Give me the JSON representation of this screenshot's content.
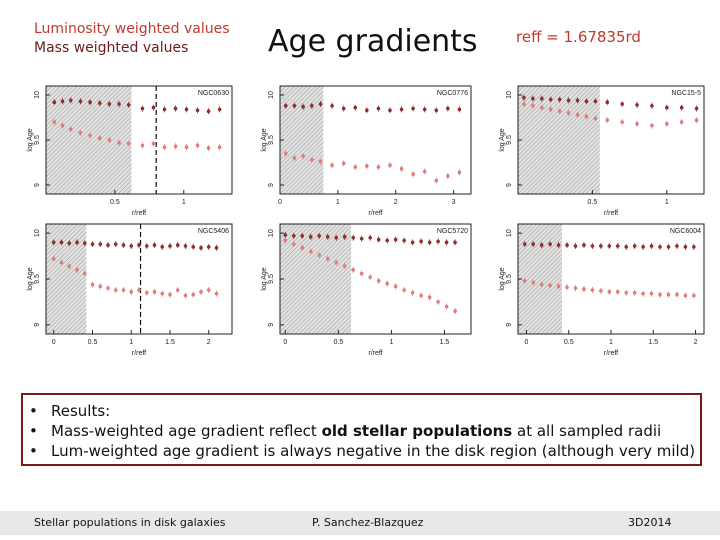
{
  "legend": {
    "lum": "Luminosity weighted values",
    "mass": "Mass weighted values"
  },
  "title": "Age gradients",
  "reff_note": "reff = 1.67835rd",
  "results": {
    "bullet": "•",
    "items": [
      {
        "text": "Results:"
      },
      {
        "text": "Mass-weighted age gradient reflect ",
        "bold": "old stellar populations",
        "after": " at all sampled radii"
      },
      {
        "text": "Lum-weighted age gradient is always negative in the disk region (although very mild)"
      }
    ]
  },
  "footer": {
    "left": "Stellar populations in disk galaxies",
    "center": "P. Sanchez-Blazquez",
    "right": "3D2014"
  },
  "colors": {
    "mass": "#8b2e2e",
    "lum": "#e07b7b",
    "border": "#7b1a1a"
  },
  "chart_data": [
    {
      "type": "scatter",
      "name": "NGC0630",
      "ylabel": "log Age",
      "xlabel": "r/reff",
      "xlim": [
        0,
        1.35
      ],
      "ylim": [
        8.9,
        10.1
      ],
      "xticks": [
        {
          "v": 0.5,
          "label": "0.5"
        },
        {
          "v": 1,
          "label": "1"
        }
      ],
      "yticks": [
        {
          "v": 9,
          "label": "9"
        },
        {
          "v": 9.5,
          "label": "9.5"
        },
        {
          "v": 10,
          "label": "10"
        }
      ],
      "shade_to": 0.62,
      "dashed_x": 0.8,
      "mass": {
        "x": [
          0.06,
          0.12,
          0.18,
          0.25,
          0.32,
          0.39,
          0.46,
          0.53,
          0.6,
          0.7,
          0.78,
          0.86,
          0.94,
          1.02,
          1.1,
          1.18,
          1.26
        ],
        "y": [
          9.92,
          9.93,
          9.94,
          9.93,
          9.92,
          9.91,
          9.9,
          9.9,
          9.89,
          9.85,
          9.86,
          9.84,
          9.85,
          9.84,
          9.83,
          9.82,
          9.84
        ]
      },
      "lum": {
        "x": [
          0.06,
          0.12,
          0.18,
          0.25,
          0.32,
          0.39,
          0.46,
          0.53,
          0.6,
          0.7,
          0.78,
          0.86,
          0.94,
          1.02,
          1.1,
          1.18,
          1.26
        ],
        "y": [
          9.7,
          9.66,
          9.62,
          9.58,
          9.55,
          9.52,
          9.5,
          9.47,
          9.46,
          9.44,
          9.46,
          9.42,
          9.43,
          9.42,
          9.44,
          9.41,
          9.42
        ]
      }
    },
    {
      "type": "scatter",
      "name": "NGC0776",
      "ylabel": "log Age",
      "xlabel": "r/reff",
      "xlim": [
        0,
        3.3
      ],
      "ylim": [
        8.9,
        10.1
      ],
      "xticks": [
        {
          "v": 0,
          "label": "0"
        },
        {
          "v": 1,
          "label": "1"
        },
        {
          "v": 2,
          "label": "2"
        },
        {
          "v": 3,
          "label": "3"
        }
      ],
      "yticks": [
        {
          "v": 9,
          "label": "9"
        },
        {
          "v": 9.5,
          "label": "9.5"
        },
        {
          "v": 10,
          "label": "10"
        }
      ],
      "shade_to": 0.75,
      "dashed_x": null,
      "mass": {
        "x": [
          0.1,
          0.25,
          0.4,
          0.55,
          0.7,
          0.9,
          1.1,
          1.3,
          1.5,
          1.7,
          1.9,
          2.1,
          2.3,
          2.5,
          2.7,
          2.9,
          3.1
        ],
        "y": [
          9.88,
          9.88,
          9.87,
          9.88,
          9.9,
          9.88,
          9.85,
          9.86,
          9.83,
          9.85,
          9.83,
          9.84,
          9.85,
          9.84,
          9.83,
          9.85,
          9.84
        ]
      },
      "lum": {
        "x": [
          0.1,
          0.25,
          0.4,
          0.55,
          0.7,
          0.9,
          1.1,
          1.3,
          1.5,
          1.7,
          1.9,
          2.1,
          2.3,
          2.5,
          2.7,
          2.9,
          3.1
        ],
        "y": [
          9.35,
          9.3,
          9.32,
          9.28,
          9.26,
          9.22,
          9.24,
          9.2,
          9.21,
          9.2,
          9.22,
          9.18,
          9.12,
          9.15,
          9.05,
          9.1,
          9.14
        ]
      }
    },
    {
      "type": "scatter",
      "name": "NGC15-5",
      "ylabel": "log Age",
      "xlabel": "r/reff",
      "xlim": [
        0,
        1.25
      ],
      "ylim": [
        8.9,
        10.1
      ],
      "xticks": [
        {
          "v": 0.5,
          "label": "0.5"
        },
        {
          "v": 1,
          "label": "1"
        }
      ],
      "yticks": [
        {
          "v": 9,
          "label": "9"
        },
        {
          "v": 9.5,
          "label": "9.5"
        },
        {
          "v": 10,
          "label": "10"
        }
      ],
      "shade_to": 0.55,
      "dashed_x": null,
      "mass": {
        "x": [
          0.04,
          0.1,
          0.16,
          0.22,
          0.28,
          0.34,
          0.4,
          0.46,
          0.52,
          0.6,
          0.7,
          0.8,
          0.9,
          1.0,
          1.1,
          1.2
        ],
        "y": [
          9.97,
          9.96,
          9.96,
          9.95,
          9.95,
          9.94,
          9.94,
          9.93,
          9.93,
          9.92,
          9.9,
          9.89,
          9.88,
          9.86,
          9.86,
          9.85
        ]
      },
      "lum": {
        "x": [
          0.04,
          0.1,
          0.16,
          0.22,
          0.28,
          0.34,
          0.4,
          0.46,
          0.52,
          0.6,
          0.7,
          0.8,
          0.9,
          1.0,
          1.1,
          1.2
        ],
        "y": [
          9.9,
          9.88,
          9.86,
          9.84,
          9.82,
          9.8,
          9.78,
          9.76,
          9.74,
          9.72,
          9.7,
          9.68,
          9.66,
          9.68,
          9.7,
          9.72
        ]
      }
    },
    {
      "type": "scatter",
      "name": "NGC5406",
      "ylabel": "log Age",
      "xlabel": "r/reff",
      "xlim": [
        -0.1,
        2.3
      ],
      "ylim": [
        8.9,
        10.1
      ],
      "xticks": [
        {
          "v": 0,
          "label": "0"
        },
        {
          "v": 0.5,
          "label": "0.5"
        },
        {
          "v": 1,
          "label": "1"
        },
        {
          "v": 1.5,
          "label": "1.5"
        },
        {
          "v": 2,
          "label": "2"
        }
      ],
      "yticks": [
        {
          "v": 9,
          "label": "9"
        },
        {
          "v": 9.5,
          "label": "9.5"
        },
        {
          "v": 10,
          "label": "10"
        }
      ],
      "shade_to": 0.42,
      "dashed_x": 1.12,
      "mass": {
        "x": [
          0.0,
          0.1,
          0.2,
          0.3,
          0.4,
          0.5,
          0.6,
          0.7,
          0.8,
          0.9,
          1.0,
          1.1,
          1.2,
          1.3,
          1.4,
          1.5,
          1.6,
          1.7,
          1.8,
          1.9,
          2.0,
          2.1
        ],
        "y": [
          9.9,
          9.9,
          9.89,
          9.9,
          9.89,
          9.88,
          9.88,
          9.87,
          9.88,
          9.87,
          9.86,
          9.87,
          9.86,
          9.87,
          9.85,
          9.86,
          9.87,
          9.86,
          9.85,
          9.84,
          9.85,
          9.84
        ]
      },
      "lum": {
        "x": [
          0.0,
          0.1,
          0.2,
          0.3,
          0.4,
          0.5,
          0.6,
          0.7,
          0.8,
          0.9,
          1.0,
          1.1,
          1.2,
          1.3,
          1.4,
          1.5,
          1.6,
          1.7,
          1.8,
          1.9,
          2.0,
          2.1
        ],
        "y": [
          9.72,
          9.68,
          9.64,
          9.6,
          9.56,
          9.44,
          9.42,
          9.4,
          9.38,
          9.38,
          9.36,
          9.38,
          9.35,
          9.36,
          9.34,
          9.33,
          9.38,
          9.32,
          9.33,
          9.36,
          9.38,
          9.34
        ]
      }
    },
    {
      "type": "scatter",
      "name": "NGC5720",
      "ylabel": "log Age",
      "xlabel": "r/reff",
      "xlim": [
        -0.05,
        1.75
      ],
      "ylim": [
        8.9,
        10.1
      ],
      "xticks": [
        {
          "v": 0,
          "label": "0"
        },
        {
          "v": 0.5,
          "label": "0.5"
        },
        {
          "v": 1,
          "label": "1"
        },
        {
          "v": 1.5,
          "label": "1.5"
        }
      ],
      "yticks": [
        {
          "v": 9,
          "label": "9"
        },
        {
          "v": 9.5,
          "label": "9.5"
        },
        {
          "v": 10,
          "label": "10"
        }
      ],
      "shade_to": 0.62,
      "dashed_x": null,
      "mass": {
        "x": [
          0.0,
          0.08,
          0.16,
          0.24,
          0.32,
          0.4,
          0.48,
          0.56,
          0.64,
          0.72,
          0.8,
          0.88,
          0.96,
          1.04,
          1.12,
          1.2,
          1.28,
          1.36,
          1.44,
          1.52,
          1.6
        ],
        "y": [
          9.98,
          9.97,
          9.97,
          9.96,
          9.97,
          9.96,
          9.95,
          9.96,
          9.95,
          9.94,
          9.95,
          9.93,
          9.92,
          9.93,
          9.92,
          9.9,
          9.91,
          9.9,
          9.91,
          9.9,
          9.9
        ]
      },
      "lum": {
        "x": [
          0.0,
          0.08,
          0.16,
          0.24,
          0.32,
          0.4,
          0.48,
          0.56,
          0.64,
          0.72,
          0.8,
          0.88,
          0.96,
          1.04,
          1.12,
          1.2,
          1.28,
          1.36,
          1.44,
          1.52,
          1.6
        ],
        "y": [
          9.92,
          9.88,
          9.84,
          9.8,
          9.76,
          9.72,
          9.68,
          9.64,
          9.6,
          9.56,
          9.52,
          9.48,
          9.45,
          9.42,
          9.38,
          9.35,
          9.32,
          9.3,
          9.25,
          9.2,
          9.15
        ]
      }
    },
    {
      "type": "scatter",
      "name": "NGC6004",
      "ylabel": "log Age",
      "xlabel": "r/reff",
      "xlim": [
        -0.1,
        2.1
      ],
      "ylim": [
        8.9,
        10.1
      ],
      "xticks": [
        {
          "v": 0,
          "label": "0"
        },
        {
          "v": 0.5,
          "label": "0.5"
        },
        {
          "v": 1,
          "label": "1"
        },
        {
          "v": 1.5,
          "label": "1.5"
        },
        {
          "v": 2,
          "label": "2"
        }
      ],
      "yticks": [
        {
          "v": 9,
          "label": "9"
        },
        {
          "v": 9.5,
          "label": "9.5"
        },
        {
          "v": 10,
          "label": "10"
        }
      ],
      "shade_to": 0.42,
      "dashed_x": null,
      "mass": {
        "x": [
          -0.02,
          0.08,
          0.18,
          0.28,
          0.38,
          0.48,
          0.58,
          0.68,
          0.78,
          0.88,
          0.98,
          1.08,
          1.18,
          1.28,
          1.38,
          1.48,
          1.58,
          1.68,
          1.78,
          1.88,
          1.98
        ],
        "y": [
          9.88,
          9.88,
          9.87,
          9.88,
          9.87,
          9.87,
          9.86,
          9.87,
          9.86,
          9.86,
          9.86,
          9.86,
          9.85,
          9.86,
          9.85,
          9.86,
          9.85,
          9.85,
          9.86,
          9.85,
          9.85
        ]
      },
      "lum": {
        "x": [
          -0.02,
          0.08,
          0.18,
          0.28,
          0.38,
          0.48,
          0.58,
          0.68,
          0.78,
          0.88,
          0.98,
          1.08,
          1.18,
          1.28,
          1.38,
          1.48,
          1.58,
          1.68,
          1.78,
          1.88,
          1.98
        ],
        "y": [
          9.48,
          9.46,
          9.44,
          9.43,
          9.42,
          9.41,
          9.4,
          9.39,
          9.38,
          9.37,
          9.36,
          9.36,
          9.35,
          9.35,
          9.34,
          9.34,
          9.33,
          9.33,
          9.33,
          9.32,
          9.32
        ]
      }
    }
  ]
}
